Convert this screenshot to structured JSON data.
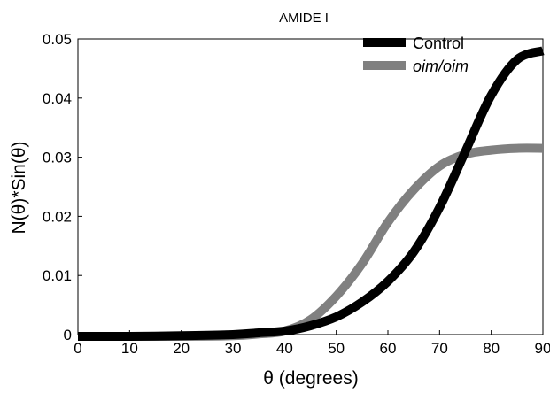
{
  "chart_data": {
    "type": "line",
    "title": "AMIDE I",
    "xlabel": "θ (degrees)",
    "ylabel": "N(θ)*Sin(θ)",
    "xlim": [
      0,
      90
    ],
    "ylim": [
      0,
      0.05
    ],
    "x_ticks": [
      "0",
      "10",
      "20",
      "30",
      "40",
      "50",
      "60",
      "70",
      "80",
      "90"
    ],
    "y_ticks": [
      "0",
      "0.01",
      "0.02",
      "0.03",
      "0.04",
      "0.05"
    ],
    "grid": false,
    "legend_position": "top-right",
    "series": [
      {
        "name": "Control",
        "color": "#000000",
        "x": [
          0,
          10,
          20,
          30,
          35,
          40,
          45,
          50,
          55,
          60,
          65,
          70,
          75,
          80,
          85,
          90
        ],
        "y": [
          -0.0003,
          -0.0003,
          -0.0002,
          0.0,
          0.0003,
          0.0006,
          0.0015,
          0.003,
          0.0055,
          0.009,
          0.014,
          0.0215,
          0.031,
          0.0405,
          0.0465,
          0.048
        ]
      },
      {
        "name": "oim/oim",
        "color": "#808080",
        "x": [
          0,
          10,
          20,
          30,
          35,
          40,
          45,
          50,
          55,
          60,
          65,
          70,
          75,
          80,
          85,
          90
        ],
        "y": [
          -0.0003,
          -0.0003,
          -0.0003,
          -0.0002,
          0.0001,
          0.0006,
          0.0025,
          0.0065,
          0.012,
          0.019,
          0.0245,
          0.0285,
          0.0305,
          0.0312,
          0.0315,
          0.0315
        ]
      }
    ]
  }
}
